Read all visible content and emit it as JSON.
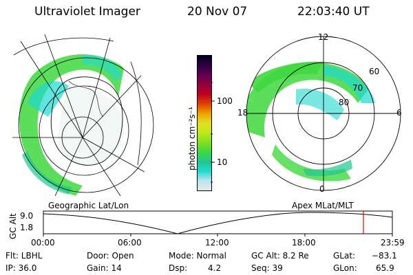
{
  "header": {
    "instrument": "Ultraviolet Imager",
    "date": "20 Nov 07",
    "time": "22:03:40 UT"
  },
  "left_panel": {
    "caption": "Geographic Lat/Lon"
  },
  "right_panel": {
    "caption": "Apex  MLat/MLT",
    "mlt_labels": [
      "12",
      "18",
      "6",
      "0"
    ],
    "lat_labels": [
      "60",
      "70",
      "80"
    ]
  },
  "colorbar": {
    "unit_label": "photon cm⁻²s⁻¹",
    "ticks": [
      "100",
      "10"
    ],
    "colors": [
      "#e8e8e8",
      "#bfe3f0",
      "#20d8d0",
      "#20c890",
      "#40d840",
      "#80e020",
      "#c0e818",
      "#e0e020",
      "#f0a000",
      "#e04000",
      "#c00020",
      "#900040",
      "#600050",
      "#300040",
      "#000020"
    ]
  },
  "altitude_plot": {
    "ylabel": "GC Alt",
    "y_ticks": [
      "9.0",
      "1.8"
    ],
    "x_ticks": [
      "00:00",
      "06:00",
      "12:00",
      "18:00",
      "23:59"
    ],
    "marker_color": "#e00000"
  },
  "info": {
    "flt": "Flt: LBHL",
    "ip": "IP: 36.0",
    "door": "Door: Open",
    "gain": "Gain: 14",
    "mode": "Mode: Normal",
    "dsp_label": "Dsp:",
    "dsp_value": "4.2",
    "gc_alt": "GC Alt: 8.2 Re",
    "seq": "Seq: 39",
    "glat_label": "GLat:",
    "glat_value": "−83.1",
    "glon_label": "GLon:",
    "glon_value": "65.9"
  }
}
